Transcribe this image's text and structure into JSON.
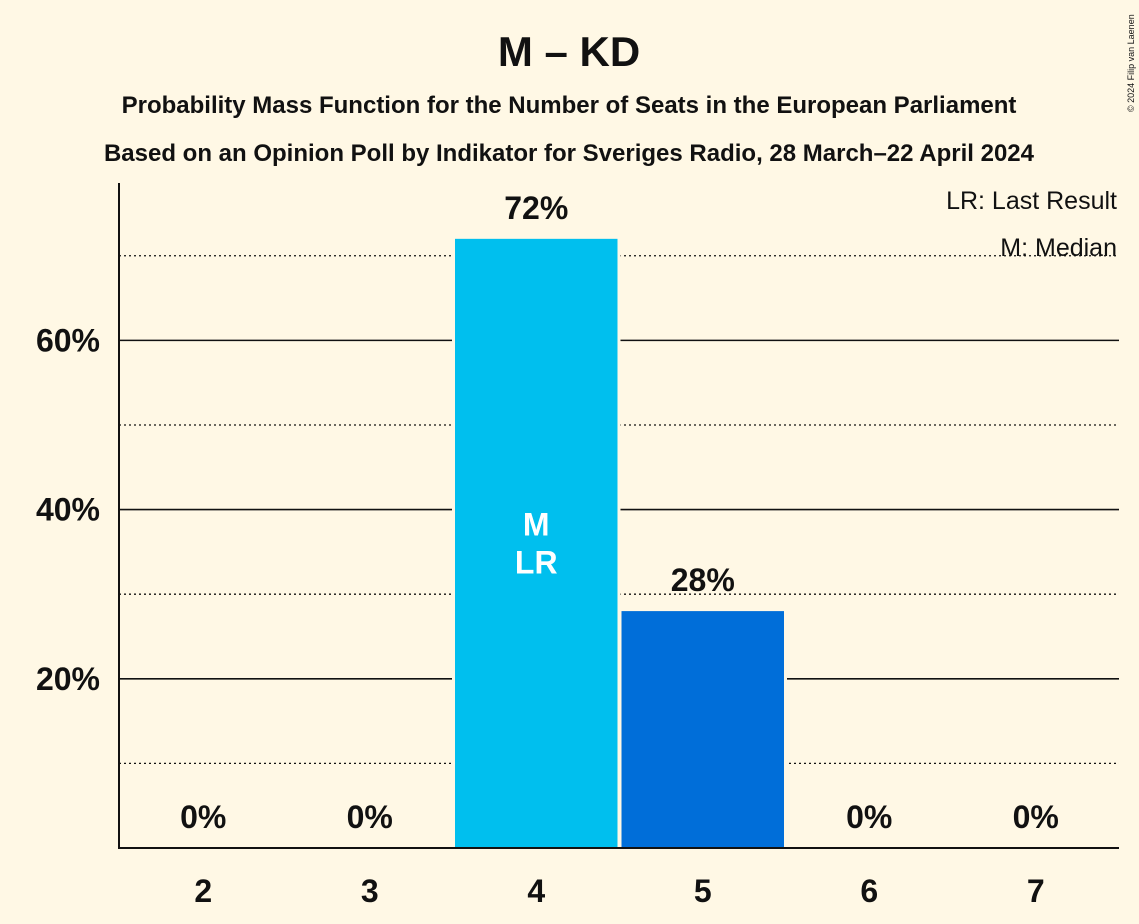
{
  "title": "M – KD",
  "subtitle_1": "Probability Mass Function for the Number of Seats in the European Parliament",
  "subtitle_2": "Based on an Opinion Poll by Indikator for Sveriges Radio, 28 March–22 April 2024",
  "copyright": "© 2024 Filip van Laenen",
  "legend": {
    "last_result": "LR: Last Result",
    "median": "M: Median"
  },
  "colors": {
    "background": "#fff8e5",
    "bar_light": "#00bfee",
    "bar_dark": "#006ed9",
    "text": "#111111"
  },
  "chart_data": {
    "type": "bar",
    "categories": [
      "2",
      "3",
      "4",
      "5",
      "6",
      "7"
    ],
    "values": [
      0,
      0,
      72,
      28,
      0,
      0
    ],
    "value_labels": [
      "0%",
      "0%",
      "72%",
      "28%",
      "0%",
      "0%"
    ],
    "bar_markers": [
      "",
      "",
      "M\nLR",
      "",
      "",
      ""
    ],
    "bar_colors": [
      "#00bfee",
      "#00bfee",
      "#00bfee",
      "#006ed9",
      "#006ed9",
      "#006ed9"
    ],
    "ylim": [
      0,
      78.6
    ],
    "y_ticks_major": [
      20,
      40,
      60
    ],
    "y_tick_labels": [
      "20%",
      "40%",
      "60%"
    ],
    "y_ticks_minor": [
      10,
      30,
      50,
      70
    ],
    "xlabel": "",
    "ylabel": "",
    "grid": true,
    "legend_position": "top-right"
  }
}
